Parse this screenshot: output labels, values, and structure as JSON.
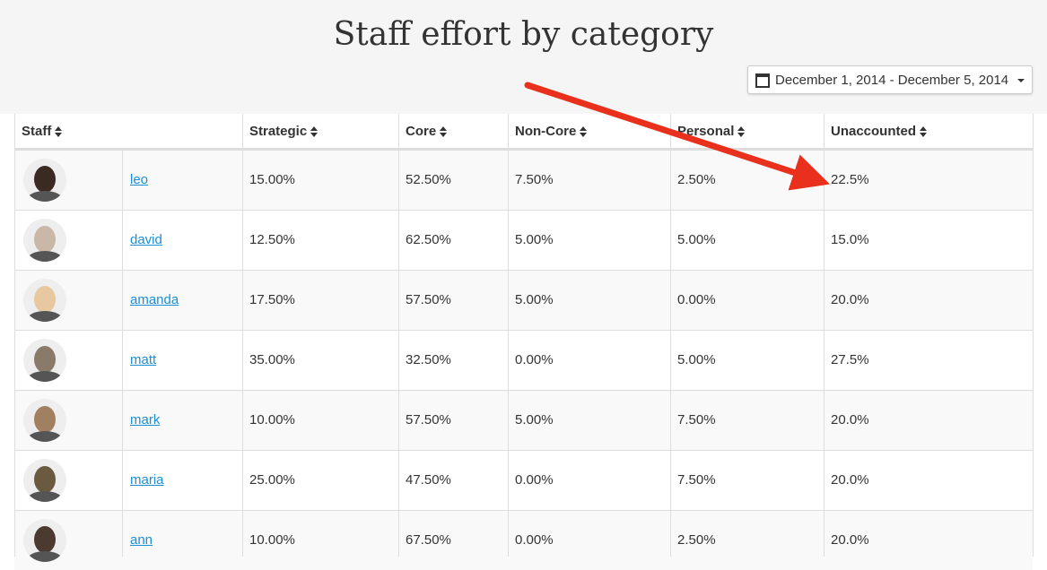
{
  "header": {
    "title": "Staff effort by category",
    "date_range": "December 1, 2014 - December 5, 2014"
  },
  "table": {
    "columns": [
      "Staff",
      "Strategic",
      "Core",
      "Non-Core",
      "Personal",
      "Unaccounted"
    ],
    "rows": [
      [
        "leo",
        "15.00%",
        "52.50%",
        "7.50%",
        "2.50%",
        "22.5%"
      ],
      [
        "david",
        "12.50%",
        "62.50%",
        "5.00%",
        "5.00%",
        "15.0%"
      ],
      [
        "amanda",
        "17.50%",
        "57.50%",
        "5.00%",
        "0.00%",
        "20.0%"
      ],
      [
        "matt",
        "35.00%",
        "32.50%",
        "0.00%",
        "5.00%",
        "27.5%"
      ],
      [
        "mark",
        "10.00%",
        "57.50%",
        "5.00%",
        "7.50%",
        "20.0%"
      ],
      [
        "maria",
        "25.00%",
        "47.50%",
        "0.00%",
        "7.50%",
        "20.0%"
      ],
      [
        "ann",
        "10.00%",
        "67.50%",
        "0.00%",
        "2.50%",
        "20.0%"
      ]
    ]
  }
}
